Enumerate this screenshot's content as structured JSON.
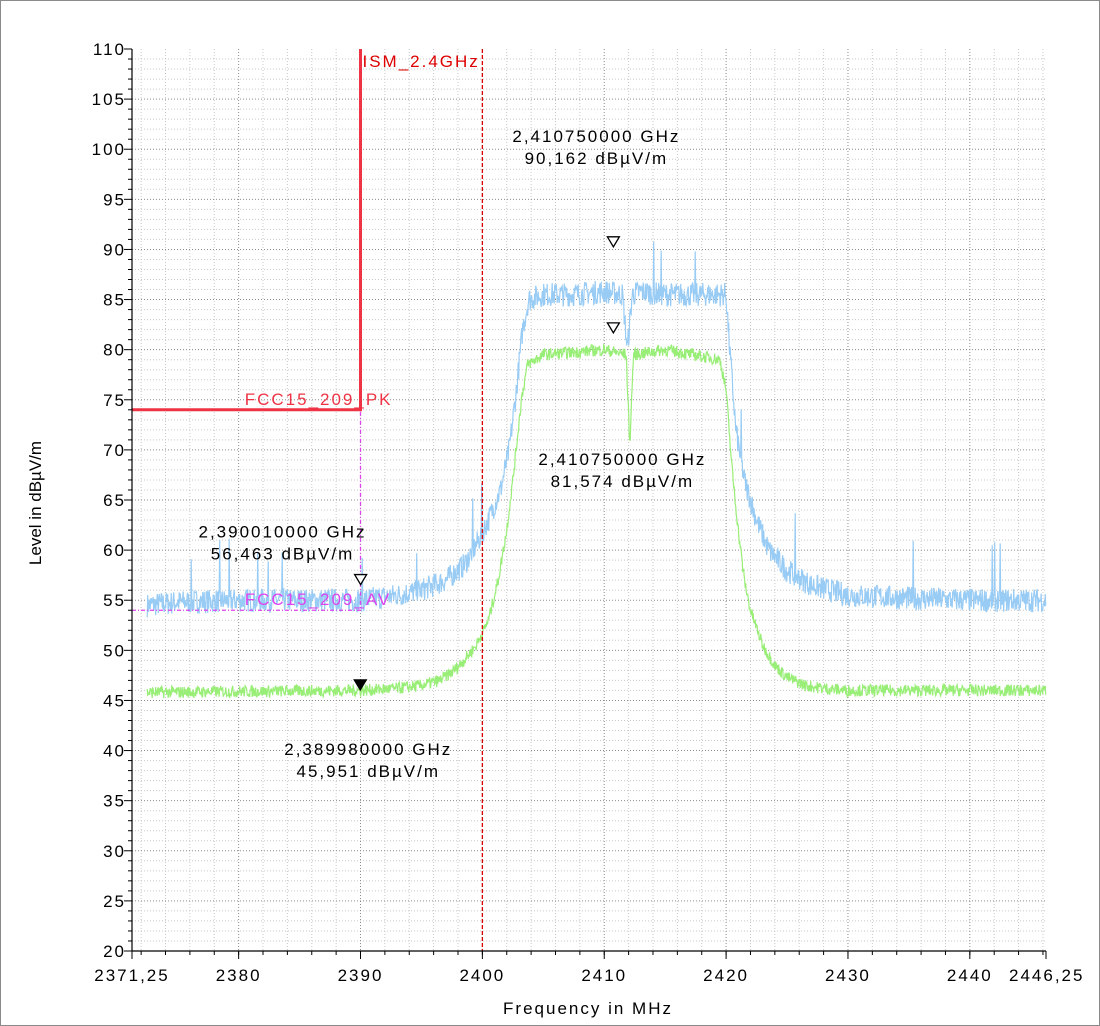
{
  "chart_data": {
    "type": "line",
    "xlabel": "Frequency in MHz",
    "ylabel": "Level in dBµV/m",
    "xlim": [
      2371.25,
      2446.25
    ],
    "ylim": [
      20,
      110
    ],
    "x_ticks": [
      2371.25,
      2380,
      2390,
      2400,
      2410,
      2420,
      2430,
      2440,
      2446.25
    ],
    "x_tick_labels": [
      "2371,25",
      "2380",
      "2390",
      "2400",
      "2410",
      "2420",
      "2430",
      "2440",
      "2446,25"
    ],
    "y_ticks": [
      20,
      25,
      30,
      35,
      40,
      45,
      50,
      55,
      60,
      65,
      70,
      75,
      80,
      85,
      90,
      95,
      100,
      105,
      110
    ],
    "grid": true,
    "colors": {
      "peak_trace": "#99ccf5",
      "average_trace": "#99ee77",
      "pk_limit": "#ee3344",
      "av_limit": "#dd44ee",
      "band_edge": "#dd0000"
    },
    "series": [
      {
        "key": "peak",
        "x": [
          2372.5,
          2375,
          2380,
          2385,
          2390,
          2393,
          2395,
          2397,
          2398.5,
          2399.5,
          2400.5,
          2401.5,
          2402.2,
          2402.8,
          2403.3,
          2403.8,
          2405,
          2407.5,
          2410,
          2411.5,
          2411.9,
          2412.3,
          2413,
          2415,
          2417.5,
          2420,
          2420.3,
          2420.8,
          2421.5,
          2422.5,
          2423.5,
          2425,
          2427,
          2430,
          2435,
          2440,
          2446.25
        ],
        "y": [
          54.5,
          54.8,
          55,
          55,
          55,
          55.5,
          56,
          57,
          58.5,
          60.5,
          63,
          66,
          70,
          76,
          82,
          85,
          85.5,
          85.5,
          85.8,
          85.5,
          80,
          85.5,
          85.8,
          85.5,
          85.5,
          85.5,
          80,
          72,
          67,
          63,
          60,
          58,
          56.5,
          55.5,
          55.2,
          55,
          55
        ],
        "noise": 1.2
      },
      {
        "key": "average",
        "x": [
          2372.5,
          2380,
          2390,
          2393,
          2395,
          2396.5,
          2397.5,
          2398.5,
          2399.5,
          2400.5,
          2401.3,
          2402,
          2402.6,
          2403.2,
          2403.7,
          2405,
          2410,
          2411.8,
          2412.1,
          2412.4,
          2415,
          2419.5,
          2420,
          2420.5,
          2421,
          2421.5,
          2422,
          2423,
          2424,
          2425,
          2426.5,
          2428,
          2430,
          2435,
          2440,
          2446.25
        ],
        "y": [
          45.8,
          45.9,
          46,
          46.2,
          46.5,
          47,
          47.8,
          49,
          50.5,
          53,
          57,
          62,
          68,
          75,
          78.5,
          79.5,
          80,
          79.5,
          70.5,
          79.5,
          80,
          79,
          76,
          68,
          62,
          57,
          54,
          50.5,
          48.5,
          47.3,
          46.5,
          46.2,
          46,
          46,
          46,
          46
        ],
        "noise": 0.6
      }
    ],
    "limit_lines": [
      {
        "label": "FCC15_209_PK",
        "x": [
          2371.25,
          2390,
          2390
        ],
        "y": [
          74,
          74,
          110
        ]
      },
      {
        "label": "FCC15_209_AV",
        "x": [
          2371.25,
          2390,
          2390
        ],
        "y": [
          54,
          54,
          74
        ]
      }
    ],
    "vertical_line": {
      "label": "ISM_2.4GHz",
      "x": 2400
    },
    "markers": [
      {
        "x": 2390.01,
        "y": 56.463,
        "filled": false,
        "label1": "2,390010000 GHz",
        "label2": "56,463 dBµV/m"
      },
      {
        "x": 2389.98,
        "y": 45.951,
        "filled": true,
        "label1": "2,389980000 GHz",
        "label2": "45,951 dBµV/m"
      },
      {
        "x": 2410.75,
        "y": 90.162,
        "filled": false,
        "label1": "2,410750000 GHz",
        "label2": "90,162 dBµV/m"
      },
      {
        "x": 2410.75,
        "y": 81.574,
        "filled": false,
        "label1": "2,410750000 GHz",
        "label2": "81,574 dBµV/m"
      }
    ]
  }
}
